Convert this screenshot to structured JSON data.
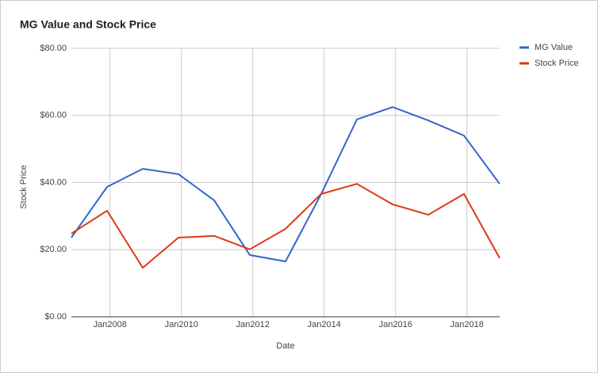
{
  "chart_data": {
    "type": "line",
    "title": "MG Value and Stock Price",
    "x_label": "Date",
    "y_label": "Stock Price",
    "x": [
      "2006-12",
      "2007-12",
      "2008-12",
      "2009-12",
      "2010-12",
      "2011-12",
      "2012-12",
      "2013-12",
      "2014-12",
      "2015-12",
      "2016-12",
      "2017-12",
      "2018-12"
    ],
    "series": [
      {
        "name": "MG Value",
        "color": "#3366cc",
        "values": [
          23.6,
          38.7,
          44.1,
          42.5,
          34.7,
          18.4,
          16.5,
          36.6,
          58.8,
          62.5,
          58.5,
          54.0,
          39.6
        ]
      },
      {
        "name": "Stock Price",
        "color": "#dc3912",
        "values": [
          24.8,
          31.6,
          14.6,
          23.6,
          24.1,
          20.1,
          26.2,
          36.6,
          39.6,
          33.5,
          30.4,
          36.6,
          17.5
        ]
      }
    ],
    "xlim": [
      "2006-12",
      "2018-12"
    ],
    "xticks": [
      {
        "value": "2008-01",
        "label": "Jan2008"
      },
      {
        "value": "2010-01",
        "label": "Jan2010"
      },
      {
        "value": "2012-01",
        "label": "Jan2012"
      },
      {
        "value": "2014-01",
        "label": "Jan2014"
      },
      {
        "value": "2016-01",
        "label": "Jan2016"
      },
      {
        "value": "2018-01",
        "label": "Jan2018"
      }
    ],
    "ylim": [
      0,
      80
    ],
    "yticks": [
      {
        "value": 0,
        "label": "$0.00"
      },
      {
        "value": 20,
        "label": "$20.00"
      },
      {
        "value": 40,
        "label": "$40.00"
      },
      {
        "value": 60,
        "label": "$60.00"
      },
      {
        "value": 80,
        "label": "$80.00"
      }
    ],
    "grid": true,
    "legend": "right"
  }
}
